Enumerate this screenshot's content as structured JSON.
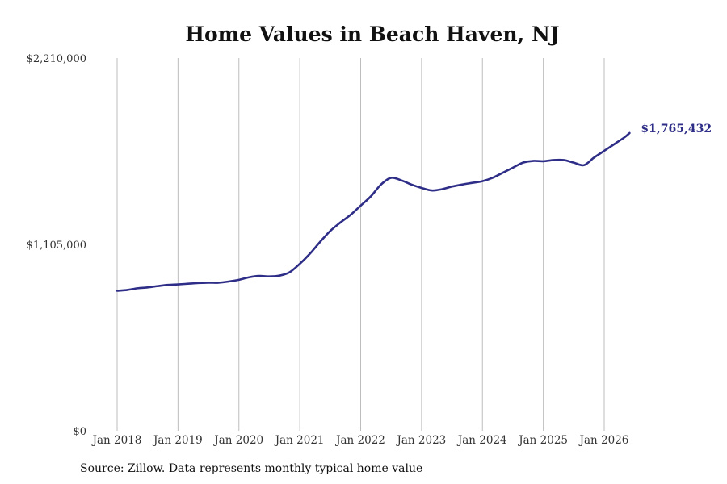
{
  "title": "Home Values in Beach Haven, NJ",
  "source": "Source: Zillow. Data represents monthly typical home value",
  "colors": {
    "line": "#2e2d87",
    "grid": "#bdbdbd",
    "text": "#333333"
  },
  "chart_data": {
    "type": "line",
    "title": "Home Values in Beach Haven, NJ",
    "xlabel": "",
    "ylabel": "",
    "ylim": [
      0,
      2210000
    ],
    "y_ticks": [
      0,
      1105000,
      2210000
    ],
    "y_tick_labels": [
      "$0",
      "$1,105,000",
      "$2,210,000"
    ],
    "x_ticks": [
      "2018-01",
      "2019-01",
      "2020-01",
      "2021-01",
      "2022-01",
      "2023-01",
      "2024-01",
      "2025-01",
      "2026-01"
    ],
    "x_tick_labels": [
      "Jan 2018",
      "Jan 2019",
      "Jan 2020",
      "Jan 2021",
      "Jan 2022",
      "Jan 2023",
      "Jan 2024",
      "Jan 2025",
      "Jan 2026"
    ],
    "grid": "vertical",
    "end_label": "$1,765,432",
    "series": [
      {
        "values": [
          [
            "2018-01",
            830000
          ],
          [
            "2018-03",
            835000
          ],
          [
            "2018-05",
            845000
          ],
          [
            "2018-07",
            850000
          ],
          [
            "2018-09",
            858000
          ],
          [
            "2018-11",
            865000
          ],
          [
            "2019-01",
            868000
          ],
          [
            "2019-03",
            872000
          ],
          [
            "2019-05",
            876000
          ],
          [
            "2019-07",
            878000
          ],
          [
            "2019-09",
            878000
          ],
          [
            "2019-11",
            885000
          ],
          [
            "2020-01",
            895000
          ],
          [
            "2020-03",
            910000
          ],
          [
            "2020-05",
            918000
          ],
          [
            "2020-07",
            915000
          ],
          [
            "2020-09",
            920000
          ],
          [
            "2020-11",
            940000
          ],
          [
            "2021-01",
            990000
          ],
          [
            "2021-03",
            1050000
          ],
          [
            "2021-05",
            1120000
          ],
          [
            "2021-07",
            1185000
          ],
          [
            "2021-09",
            1235000
          ],
          [
            "2021-11",
            1280000
          ],
          [
            "2022-01",
            1335000
          ],
          [
            "2022-03",
            1390000
          ],
          [
            "2022-05",
            1460000
          ],
          [
            "2022-07",
            1500000
          ],
          [
            "2022-09",
            1485000
          ],
          [
            "2022-11",
            1460000
          ],
          [
            "2023-01",
            1440000
          ],
          [
            "2023-03",
            1425000
          ],
          [
            "2023-05",
            1432000
          ],
          [
            "2023-07",
            1448000
          ],
          [
            "2023-09",
            1460000
          ],
          [
            "2023-11",
            1470000
          ],
          [
            "2024-01",
            1480000
          ],
          [
            "2024-03",
            1500000
          ],
          [
            "2024-05",
            1530000
          ],
          [
            "2024-07",
            1560000
          ],
          [
            "2024-09",
            1590000
          ],
          [
            "2024-11",
            1600000
          ],
          [
            "2025-01",
            1598000
          ],
          [
            "2025-03",
            1605000
          ],
          [
            "2025-05",
            1605000
          ],
          [
            "2025-07",
            1590000
          ],
          [
            "2025-09",
            1575000
          ],
          [
            "2025-11",
            1620000
          ],
          [
            "2026-01",
            1660000
          ],
          [
            "2026-03",
            1700000
          ],
          [
            "2026-05",
            1740000
          ],
          [
            "2026-06",
            1765432
          ]
        ]
      }
    ]
  }
}
